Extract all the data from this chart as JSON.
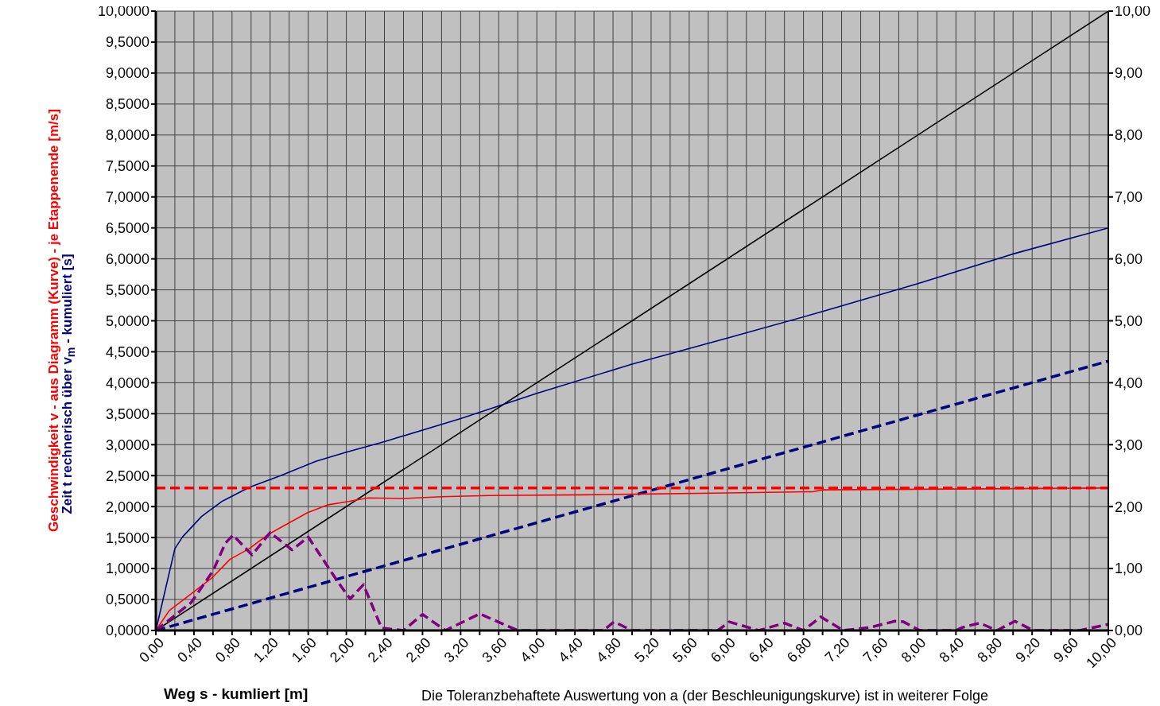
{
  "chart_data": {
    "type": "line",
    "xlabel": "Weg s - kumliert [m]",
    "ylabel": "Geschwindigkeit v - aus Diagramm (Kurve) - je Etappenende [m/s]",
    "annotations": [
      "Zeit t rechnerisch über v$_{m}$ - kumuliert [s]",
      "Die Toleranzbehaftete Auswertung von a (der Beschleunigungskurve) ist in weiterer Folge"
    ],
    "xlim": [
      0,
      10
    ],
    "xticks": [
      {
        "value": 0,
        "label": "0,00"
      },
      {
        "value": 0.2,
        "label": null
      },
      {
        "value": 0.4,
        "label": "0,40"
      },
      {
        "value": 0.6,
        "label": null
      },
      {
        "value": 0.8,
        "label": "0,80"
      },
      {
        "value": 1,
        "label": null
      },
      {
        "value": 1.2,
        "label": "1,20"
      },
      {
        "value": 1.4,
        "label": null
      },
      {
        "value": 1.6,
        "label": "1,60"
      },
      {
        "value": 1.8,
        "label": null
      },
      {
        "value": 2,
        "label": "2,00"
      },
      {
        "value": 2.2,
        "label": null
      },
      {
        "value": 2.4,
        "label": "2,40"
      },
      {
        "value": 2.6,
        "label": null
      },
      {
        "value": 2.8,
        "label": "2,80"
      },
      {
        "value": 3,
        "label": null
      },
      {
        "value": 3.2,
        "label": "3,20"
      },
      {
        "value": 3.4,
        "label": null
      },
      {
        "value": 3.6,
        "label": "3,60"
      },
      {
        "value": 3.8,
        "label": null
      },
      {
        "value": 4,
        "label": "4,00"
      },
      {
        "value": 4.2,
        "label": null
      },
      {
        "value": 4.4,
        "label": "4,40"
      },
      {
        "value": 4.6,
        "label": null
      },
      {
        "value": 4.8,
        "label": "4,80"
      },
      {
        "value": 5,
        "label": null
      },
      {
        "value": 5.2,
        "label": "5,20"
      },
      {
        "value": 5.4,
        "label": null
      },
      {
        "value": 5.6,
        "label": "5,60"
      },
      {
        "value": 5.8,
        "label": null
      },
      {
        "value": 6,
        "label": "6,00"
      },
      {
        "value": 6.2,
        "label": null
      },
      {
        "value": 6.4,
        "label": "6,40"
      },
      {
        "value": 6.6,
        "label": null
      },
      {
        "value": 6.8,
        "label": "6,80"
      },
      {
        "value": 7,
        "label": null
      },
      {
        "value": 7.2,
        "label": "7,20"
      },
      {
        "value": 7.4,
        "label": null
      },
      {
        "value": 7.6,
        "label": "7,60"
      },
      {
        "value": 7.8,
        "label": null
      },
      {
        "value": 8,
        "label": "8,00"
      },
      {
        "value": 8.2,
        "label": null
      },
      {
        "value": 8.4,
        "label": "8,40"
      },
      {
        "value": 8.6,
        "label": null
      },
      {
        "value": 8.8,
        "label": "8,80"
      },
      {
        "value": 9,
        "label": null
      },
      {
        "value": 9.2,
        "label": "9,20"
      },
      {
        "value": 9.4,
        "label": null
      },
      {
        "value": 9.6,
        "label": "9,60"
      },
      {
        "value": 9.8,
        "label": null
      },
      {
        "value": 10,
        "label": "10,00"
      }
    ],
    "ylim": [
      0,
      10
    ],
    "yticks": [
      {
        "value": 0,
        "label": "0,0000"
      },
      {
        "value": 0.5,
        "label": "0,5000"
      },
      {
        "value": 1,
        "label": "1,0000"
      },
      {
        "value": 1.5,
        "label": "1,5000"
      },
      {
        "value": 2,
        "label": "2,0000"
      },
      {
        "value": 2.5,
        "label": "2,5000"
      },
      {
        "value": 3,
        "label": "3,0000"
      },
      {
        "value": 3.5,
        "label": "3,5000"
      },
      {
        "value": 4,
        "label": "4,0000"
      },
      {
        "value": 4.5,
        "label": "4,5000"
      },
      {
        "value": 5,
        "label": "5,0000"
      },
      {
        "value": 5.5,
        "label": "5,5000"
      },
      {
        "value": 6,
        "label": "6,0000"
      },
      {
        "value": 6.5,
        "label": "6,5000"
      },
      {
        "value": 7,
        "label": "7,0000"
      },
      {
        "value": 7.5,
        "label": "7,5000"
      },
      {
        "value": 8,
        "label": "8,0000"
      },
      {
        "value": 8.5,
        "label": "8,5000"
      },
      {
        "value": 9,
        "label": "9,0000"
      },
      {
        "value": 9.5,
        "label": "9,5000"
      },
      {
        "value": 10,
        "label": "10,0000"
      }
    ],
    "y2lim": [
      0,
      10
    ],
    "y2ticks": [
      {
        "value": 0,
        "label": "0,00"
      },
      {
        "value": 1,
        "label": "1,00"
      },
      {
        "value": 2,
        "label": "2,00"
      },
      {
        "value": 3,
        "label": "3,00"
      },
      {
        "value": 4,
        "label": "4,00"
      },
      {
        "value": 5,
        "label": "5,00"
      },
      {
        "value": 6,
        "label": "6,00"
      },
      {
        "value": 7,
        "label": "7,00"
      },
      {
        "value": 8,
        "label": "8,00"
      },
      {
        "value": 9,
        "label": "9,00"
      },
      {
        "value": 10,
        "label": "10,00"
      }
    ],
    "grid": true,
    "marker": "none",
    "series": [
      {
        "color": "#000000",
        "line_style": "solid",
        "x": [
          0,
          10
        ],
        "values": [
          0,
          10
        ]
      },
      {
        "color": "#000080",
        "line_style": "solid",
        "x": [
          0,
          0.2,
          0.28,
          0.48,
          0.7,
          0.98,
          1.31,
          1.68,
          2,
          2.4,
          3.2,
          4,
          5,
          6,
          7,
          8,
          9,
          10
        ],
        "values": [
          0,
          1.32,
          1.51,
          1.84,
          2.09,
          2.31,
          2.5,
          2.73,
          2.88,
          3.05,
          3.42,
          3.83,
          4.3,
          4.72,
          5.15,
          5.6,
          6.08,
          6.5
        ]
      },
      {
        "color": "#000080",
        "line_style": "dashed",
        "x": [
          0,
          10
        ],
        "values": [
          0,
          4.35
        ]
      },
      {
        "color": "#ff0000",
        "line_style": "dashed",
        "x": [
          0,
          10
        ],
        "values": [
          2.3,
          2.3
        ]
      },
      {
        "color": "#ff0000",
        "line_style": "solid",
        "x": [
          0,
          0.14,
          0.59,
          0.78,
          0.98,
          1.18,
          1.39,
          1.59,
          1.81,
          2.01,
          2.23,
          2.6,
          3,
          3.5,
          4.5,
          5,
          6,
          6.9,
          7,
          8,
          10
        ],
        "values": [
          0,
          0.32,
          0.85,
          1.15,
          1.32,
          1.55,
          1.73,
          1.9,
          2.03,
          2.08,
          2.14,
          2.13,
          2.16,
          2.18,
          2.19,
          2.2,
          2.22,
          2.24,
          2.27,
          2.28,
          2.3
        ]
      },
      {
        "color": "#800080",
        "line_style": "dashed",
        "x": [
          0,
          0.37,
          0.6,
          0.73,
          0.81,
          1.01,
          1.2,
          1.43,
          1.6,
          1.9,
          2.04,
          2.18,
          2.37,
          2.6,
          2.8,
          3.04,
          3.4,
          3.65,
          3.8,
          4.7,
          4.81,
          5,
          5.9,
          6.02,
          6.33,
          6.6,
          6.8,
          6.98,
          7.22,
          7.5,
          7.76,
          7.85,
          8.02,
          8.4,
          8.47,
          8.65,
          8.83,
          9.02,
          9.21,
          9.7,
          10
        ],
        "values": [
          0,
          0.45,
          0.96,
          1.41,
          1.54,
          1.22,
          1.58,
          1.3,
          1.51,
          0.81,
          0.51,
          0.74,
          0.04,
          0,
          0.26,
          0,
          0.27,
          0.1,
          0,
          0,
          0.14,
          0,
          0,
          0.14,
          0,
          0.12,
          0,
          0.22,
          0,
          0.05,
          0.15,
          0.14,
          0,
          0,
          0.05,
          0.12,
          0,
          0.15,
          0,
          0,
          0.1
        ]
      }
    ]
  }
}
